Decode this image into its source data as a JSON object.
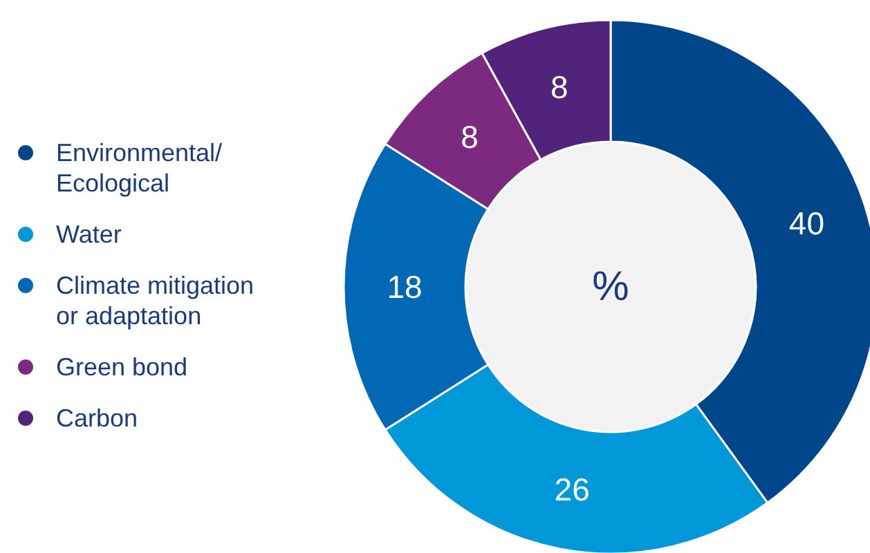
{
  "chart_data": {
    "type": "donut",
    "categories": [
      "Environmental/Ecological",
      "Water",
      "Climate mitigation or adaptation",
      "Green bond",
      "Carbon"
    ],
    "values": [
      40,
      26,
      18,
      8,
      8
    ],
    "colors": [
      "#00468b",
      "#0098d8",
      "#0068b4",
      "#7b2a80",
      "#51237a"
    ],
    "data_labels": true,
    "legend": "left",
    "annotations": [
      "%"
    ]
  }
}
